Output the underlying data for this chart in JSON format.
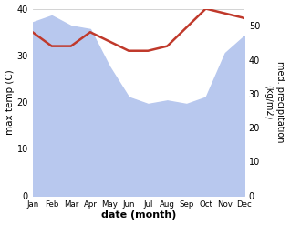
{
  "months": [
    "Jan",
    "Feb",
    "Mar",
    "Apr",
    "May",
    "Jun",
    "Jul",
    "Aug",
    "Sep",
    "Oct",
    "Nov",
    "Dec"
  ],
  "temp": [
    35,
    32,
    32,
    35,
    33,
    31,
    31,
    32,
    36,
    40,
    39,
    38
  ],
  "precip": [
    51,
    53,
    50,
    49,
    38,
    29,
    27,
    28,
    27,
    29,
    42,
    47
  ],
  "fill_color": "#b8c8ee",
  "line_color_temp": "#c0392b",
  "ylabel_left": "max temp (C)",
  "ylabel_right": "med. precipitation\n(kg/m2)",
  "xlabel": "date (month)",
  "ylim_left": [
    0,
    40
  ],
  "ylim_right": [
    0,
    55
  ],
  "yticks_left": [
    0,
    10,
    20,
    30,
    40
  ],
  "yticks_right": [
    0,
    10,
    20,
    30,
    40,
    50
  ],
  "bg_color": "#ffffff"
}
